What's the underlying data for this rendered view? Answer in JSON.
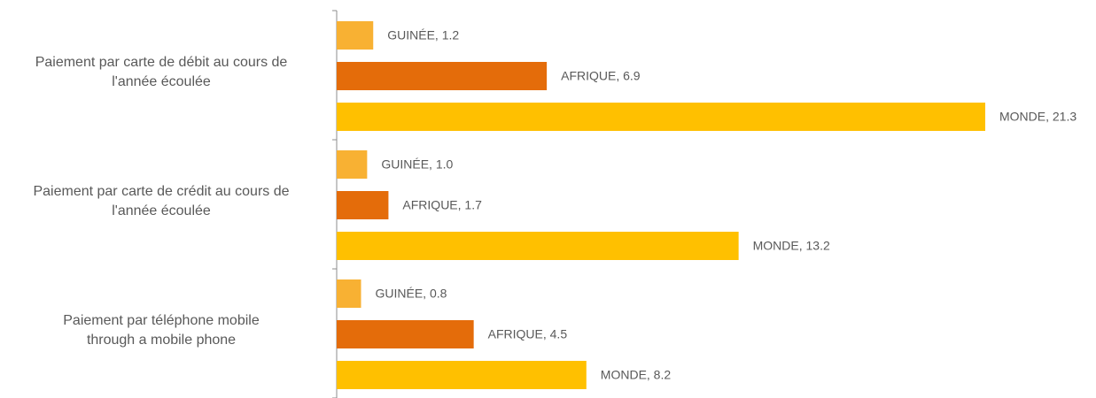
{
  "chart_data": {
    "type": "hbar",
    "categories": [
      "Paiement par carte de débit au cours de\nl'année écoulée",
      "Paiement par carte de crédit au cours de\nl'année écoulée",
      "Paiement par téléphone mobile\nthrough a mobile phone"
    ],
    "series": [
      {
        "name": "GUINÉE",
        "color": "#f8b133",
        "values": [
          1.2,
          1.0,
          0.8
        ],
        "value_labels": [
          "GUINÉE, 1.2",
          "GUINÉE, 1.0",
          "GUINÉE, 0.8"
        ]
      },
      {
        "name": "AFRIQUE",
        "color": "#e46c0a",
        "values": [
          6.9,
          1.7,
          4.5
        ],
        "value_labels": [
          "AFRIQUE, 6.9",
          "AFRIQUE, 1.7",
          "AFRIQUE, 4.5"
        ]
      },
      {
        "name": "MONDE",
        "color": "#ffc000",
        "values": [
          21.3,
          13.2,
          8.2
        ],
        "value_labels": [
          "MONDE, 21.3",
          "MONDE, 13.2",
          "MONDE, 8.2"
        ]
      }
    ]
  }
}
